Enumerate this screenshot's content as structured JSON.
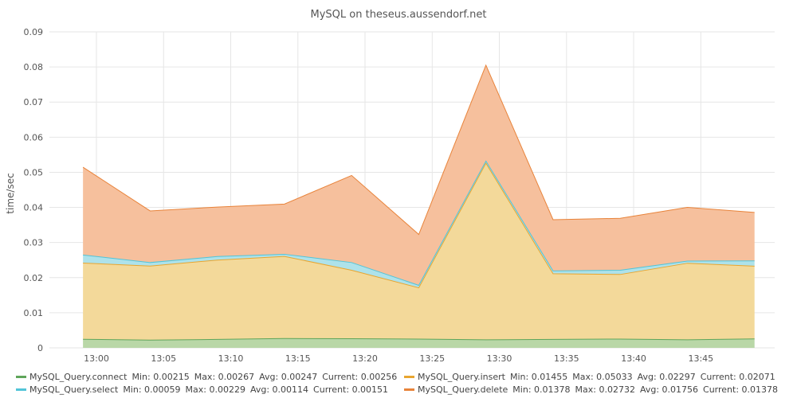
{
  "chart_data": {
    "type": "area",
    "stacked": true,
    "title": "MySQL on theseus.aussendorf.net",
    "xlabel": "",
    "ylabel": "time/sec",
    "ylim": [
      0,
      0.09
    ],
    "yticks": [
      "0",
      "0.01",
      "0.02",
      "0.03",
      "0.04",
      "0.05",
      "0.06",
      "0.07",
      "0.08",
      "0.09"
    ],
    "x_minutes": [
      -1,
      4,
      9,
      14,
      19,
      24,
      29,
      34,
      39,
      44,
      49
    ],
    "xticks": [
      {
        "minute": 0,
        "label": "13:00"
      },
      {
        "minute": 5,
        "label": "13:05"
      },
      {
        "minute": 10,
        "label": "13:10"
      },
      {
        "minute": 15,
        "label": "13:15"
      },
      {
        "minute": 20,
        "label": "13:20"
      },
      {
        "minute": 25,
        "label": "13:25"
      },
      {
        "minute": 30,
        "label": "13:30"
      },
      {
        "minute": 35,
        "label": "13:35"
      },
      {
        "minute": 40,
        "label": "13:40"
      },
      {
        "minute": 45,
        "label": "13:45"
      }
    ],
    "xlim": [
      -3.5,
      50.5
    ],
    "grid": true,
    "legend_position": "bottom",
    "series": [
      {
        "name": "MySQL_Query.connect",
        "key": "connect",
        "values": [
          0.00245,
          0.0022,
          0.0024,
          0.00265,
          0.0026,
          0.0025,
          0.0023,
          0.0024,
          0.0025,
          0.0023,
          0.00256
        ],
        "line_color": "#5fa55a",
        "fill_color": "#b9d7a7",
        "legend": {
          "min": "Min: 0.00215",
          "max": "Max: 0.00267",
          "avg": "Avg: 0.00247",
          "current": "Current: 0.00256"
        }
      },
      {
        "name": "MySQL_Query.insert",
        "key": "insert",
        "values": [
          0.0217,
          0.0211,
          0.0226,
          0.0234,
          0.0195,
          0.0146,
          0.0503,
          0.0187,
          0.0184,
          0.0218,
          0.02071
        ],
        "line_color": "#e8a530",
        "fill_color": "#f3d99a",
        "legend": {
          "min": "Min: 0.01455",
          "max": "Max: 0.05033",
          "avg": "Avg: 0.02297",
          "current": "Current: 0.02071"
        }
      },
      {
        "name": "MySQL_Query.select",
        "key": "select",
        "values": [
          0.0023,
          0.001,
          0.001,
          0.0006,
          0.0022,
          0.0007,
          0.0006,
          0.0008,
          0.0012,
          0.0006,
          0.00151
        ],
        "line_color": "#52c4d8",
        "fill_color": "#aee2ea",
        "legend": {
          "min": "Min: 0.00059",
          "max": "Max: 0.00229",
          "avg": "Avg: 0.00114",
          "current": "Current: 0.00151"
        }
      },
      {
        "name": "MySQL_Query.delete",
        "key": "delete",
        "values": [
          0.025,
          0.0147,
          0.0141,
          0.0143,
          0.0248,
          0.0145,
          0.0273,
          0.0146,
          0.0148,
          0.0153,
          0.01378
        ],
        "line_color": "#e8833a",
        "fill_color": "#f6c09d",
        "legend": {
          "min": "Min: 0.01378",
          "max": "Max: 0.02732",
          "avg": "Avg: 0.01756",
          "current": "Current: 0.01378"
        }
      }
    ]
  }
}
